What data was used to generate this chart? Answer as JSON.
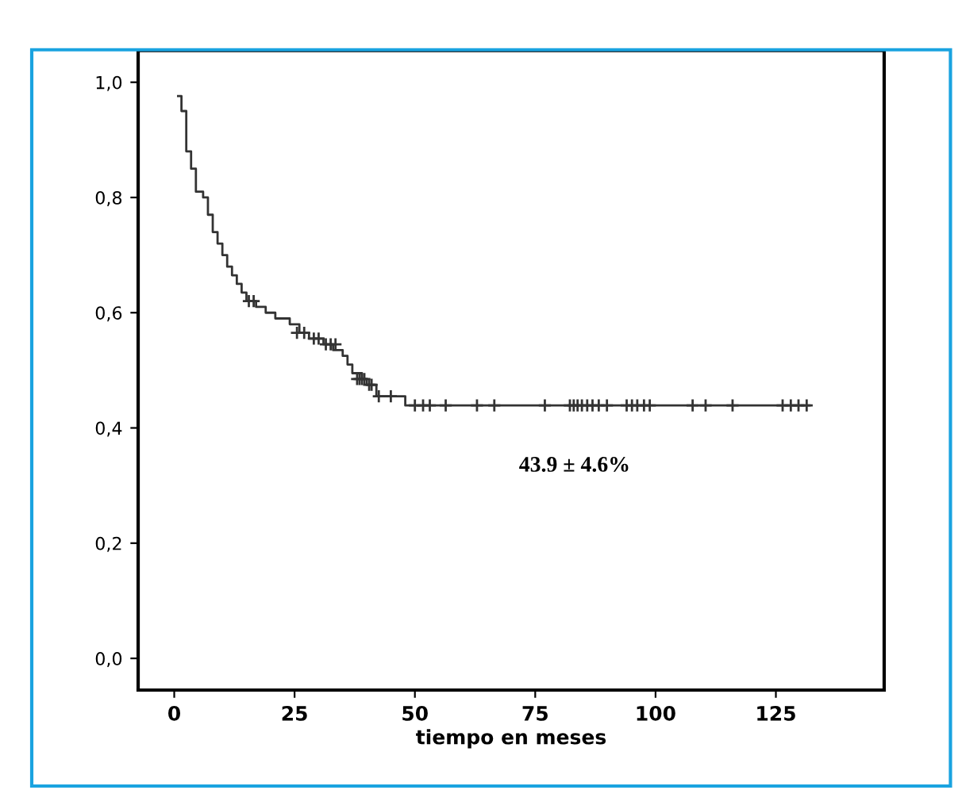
{
  "chart_data": {
    "type": "step",
    "xlabel": "tiempo en meses",
    "annotations": [
      "43.9 ± 4.6%"
    ],
    "xlim": [
      -7.5,
      147.5
    ],
    "xticks": [
      0,
      25,
      50,
      75,
      100,
      125
    ],
    "ylim": [
      -0.055,
      1.055
    ],
    "yticks": [
      {
        "value": 0.0,
        "label": "0,0"
      },
      {
        "value": 0.2,
        "label": "0,2"
      },
      {
        "value": 0.4,
        "label": "0,4"
      },
      {
        "value": 0.6,
        "label": "0,6"
      },
      {
        "value": 0.8,
        "label": "0,8"
      },
      {
        "value": 1.0,
        "label": "1,0"
      }
    ],
    "grid": false,
    "legend": false,
    "series": [
      {
        "color": "#333333",
        "marker": "none",
        "x": [
          0.8,
          1.5,
          2.5,
          3.5,
          4.5,
          6,
          7,
          8,
          9,
          10,
          11,
          12,
          13,
          14,
          15,
          17,
          19,
          21,
          24,
          26,
          28,
          31,
          33,
          35,
          36,
          37,
          39,
          40,
          42,
          48,
          132
        ],
        "values": [
          0.976,
          0.95,
          0.88,
          0.85,
          0.81,
          0.8,
          0.77,
          0.74,
          0.72,
          0.7,
          0.68,
          0.665,
          0.65,
          0.635,
          0.62,
          0.61,
          0.6,
          0.59,
          0.58,
          0.565,
          0.555,
          0.545,
          0.535,
          0.525,
          0.51,
          0.495,
          0.485,
          0.475,
          0.455,
          0.439,
          0.439
        ]
      },
      {
        "type": "scatter",
        "color": "#333333",
        "marker": "cross",
        "x": [
          15.5,
          16.5,
          25.5,
          27,
          29,
          30,
          31.5,
          32.5,
          33.5,
          38,
          38.5,
          39,
          39.5,
          40.5,
          41,
          42.5,
          45,
          50.0,
          51.7,
          53.1,
          56.4,
          62.9,
          66.5,
          77.0,
          82.2,
          83.0,
          83.8,
          84.7,
          85.8,
          86.9,
          88.2,
          89.9,
          94.0,
          95.1,
          96.2,
          97.6,
          98.8,
          107.7,
          110.4,
          116.0,
          126.4,
          128.1,
          129.7,
          131.4
        ],
        "values": [
          0.62,
          0.62,
          0.565,
          0.565,
          0.555,
          0.555,
          0.545,
          0.545,
          0.545,
          0.485,
          0.485,
          0.485,
          0.485,
          0.475,
          0.475,
          0.455,
          0.455,
          0.439,
          0.439,
          0.439,
          0.439,
          0.439,
          0.439,
          0.439,
          0.439,
          0.439,
          0.439,
          0.439,
          0.439,
          0.439,
          0.439,
          0.439,
          0.439,
          0.439,
          0.439,
          0.439,
          0.439,
          0.439,
          0.439,
          0.439,
          0.439,
          0.439,
          0.439,
          0.439
        ]
      }
    ]
  }
}
